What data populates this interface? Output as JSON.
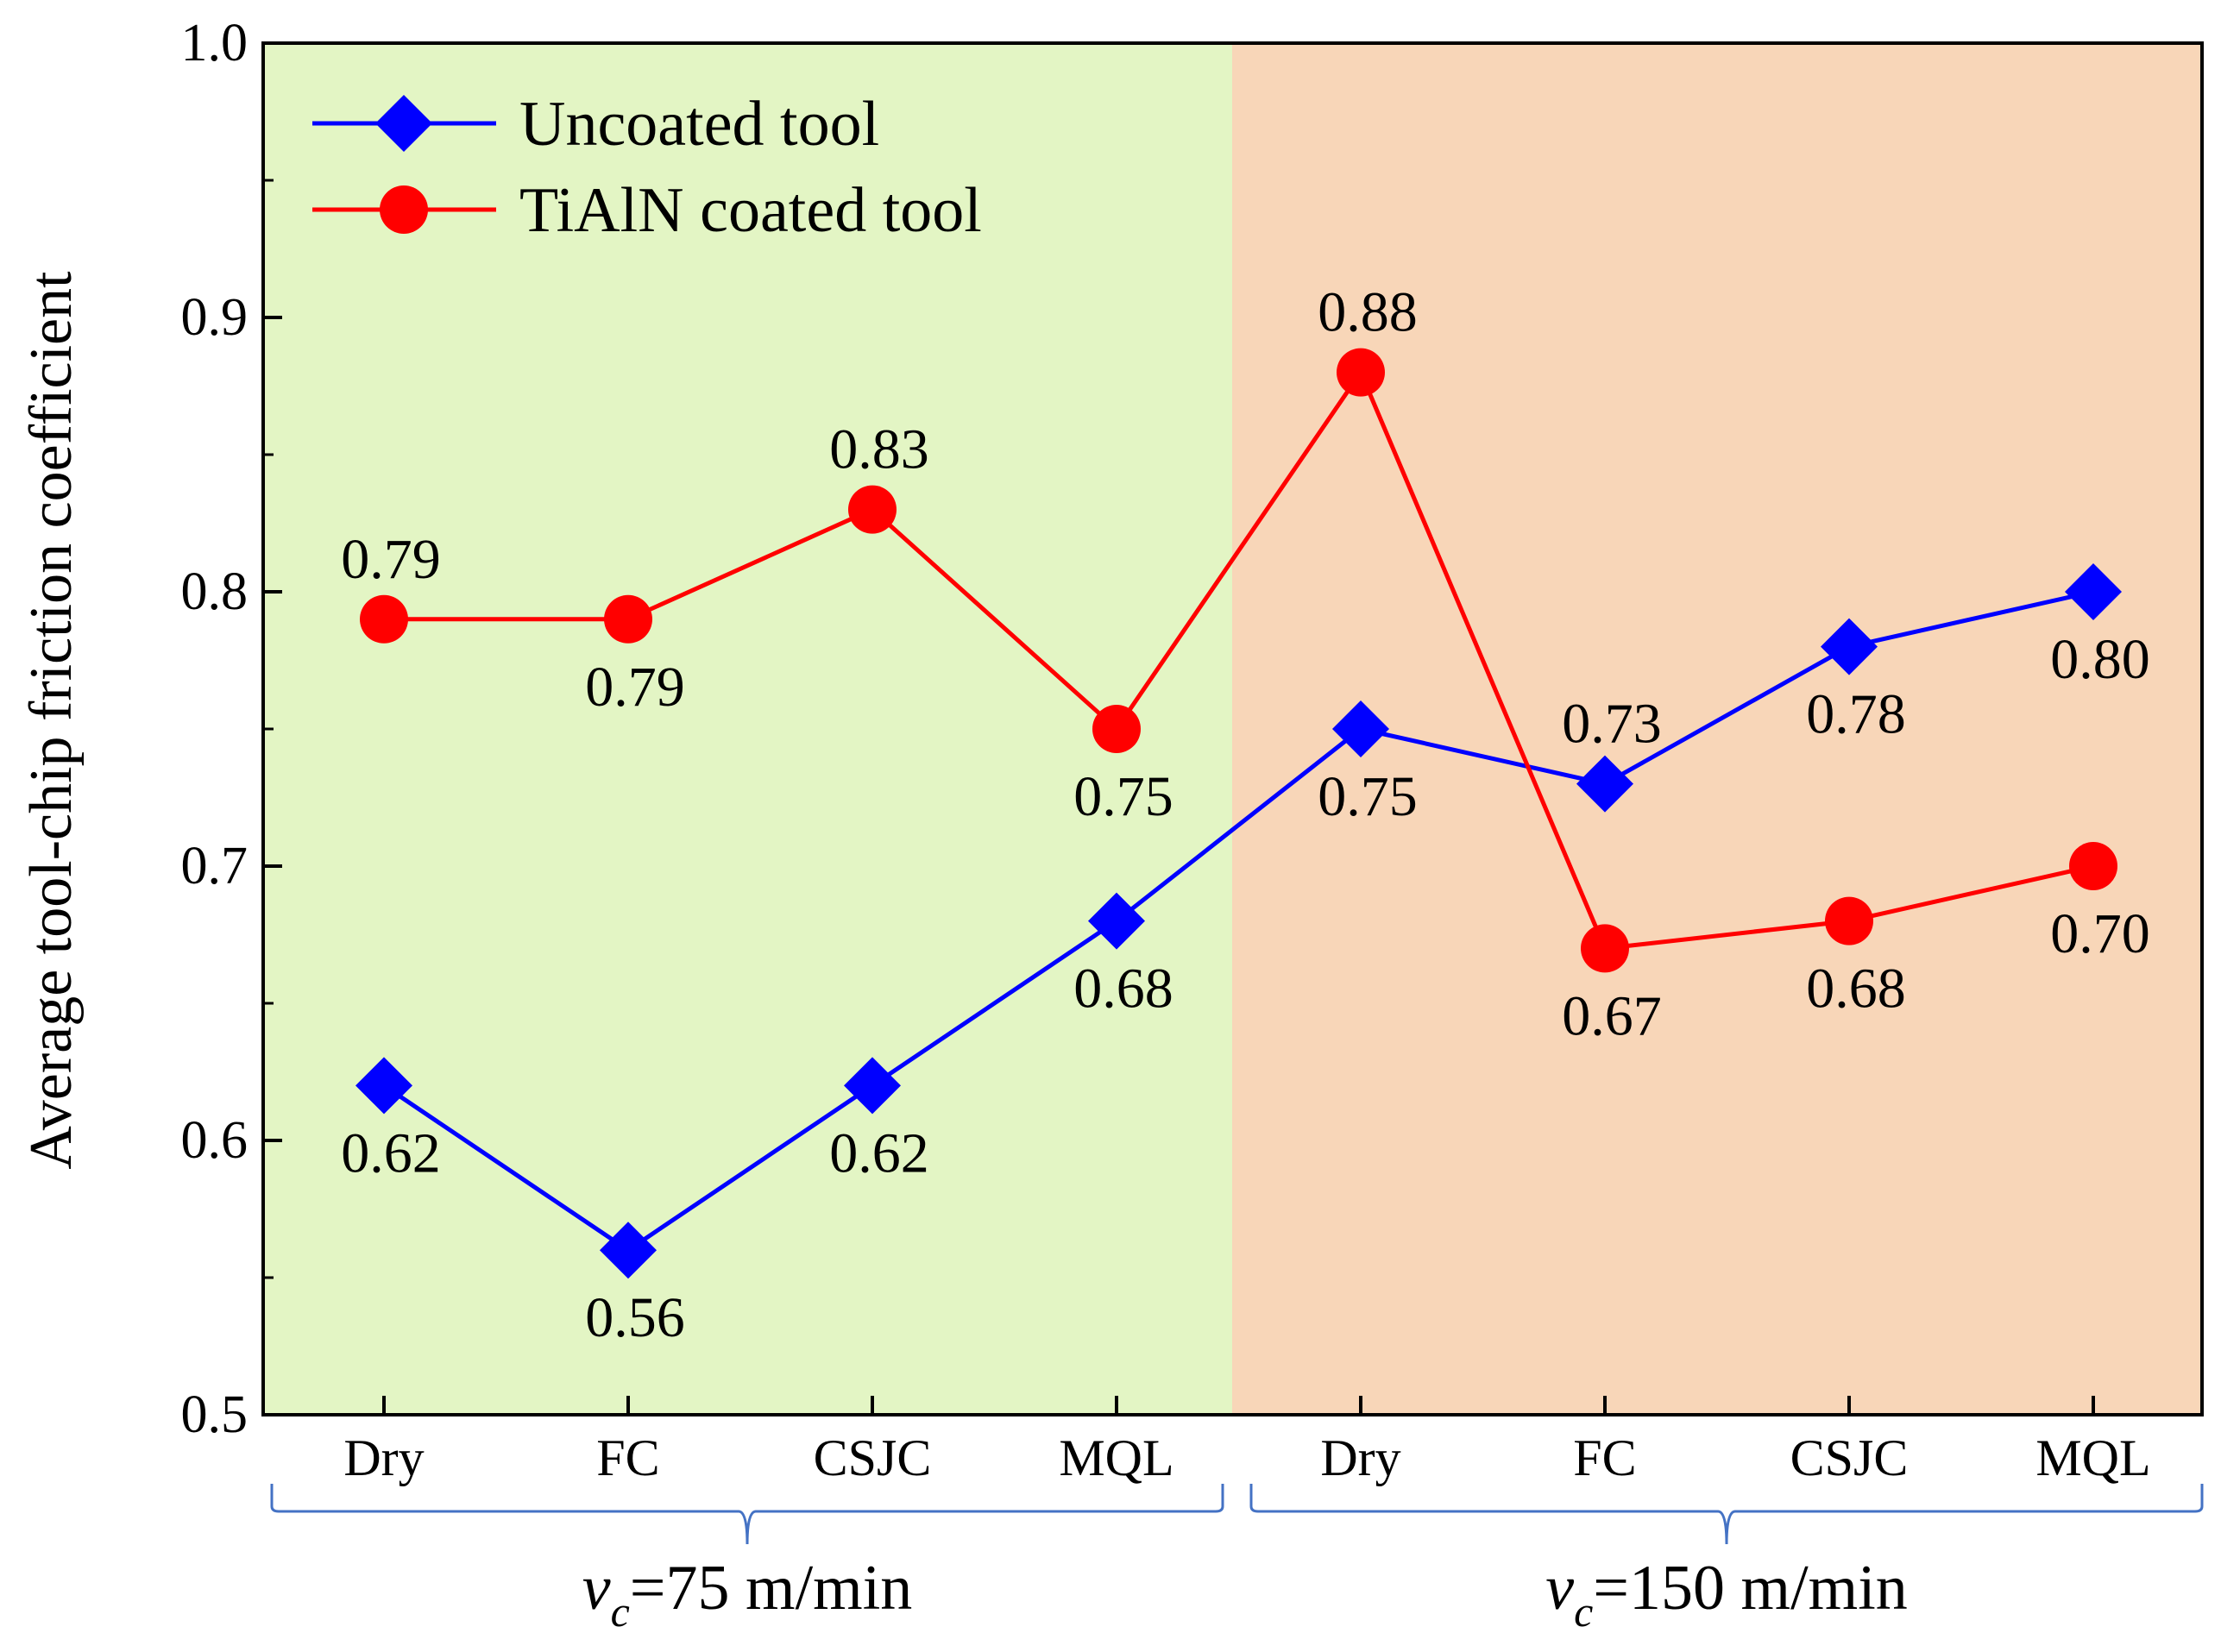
{
  "chart_data": {
    "type": "line",
    "title": "",
    "ylabel": "Average tool-chip friction coefficient",
    "xlabel": "",
    "ylim": [
      0.5,
      1.0
    ],
    "yticks": [
      "0.5",
      "0.6",
      "0.7",
      "0.8",
      "0.9",
      "1.0"
    ],
    "categories": [
      "Dry",
      "FC",
      "CSJC",
      "MQL",
      "Dry",
      "FC",
      "CSJC",
      "MQL"
    ],
    "groups": [
      {
        "label_italic": "v",
        "label_sub": "c",
        "label_rest": "=75 m/min",
        "start": 0,
        "end": 3,
        "background": "#e3f5c4"
      },
      {
        "label_italic": "v",
        "label_sub": "c",
        "label_rest": "=150 m/min",
        "start": 4,
        "end": 7,
        "background": "#f8d6b8"
      }
    ],
    "series": [
      {
        "name": "Uncoated tool",
        "marker": "diamond",
        "color": "#0000ff",
        "values": [
          0.62,
          0.56,
          0.62,
          0.68,
          0.75,
          0.73,
          0.78,
          0.8
        ],
        "labels": [
          "0.62",
          "0.56",
          "0.62",
          "0.68",
          "0.75",
          "0.73",
          "0.78",
          "0.80"
        ],
        "label_pos": [
          "below",
          "below",
          "below",
          "below",
          "below",
          "above",
          "below",
          "below"
        ]
      },
      {
        "name": "TiAlN coated tool",
        "marker": "circle",
        "color": "#ff0000",
        "values": [
          0.79,
          0.79,
          0.83,
          0.75,
          0.88,
          0.67,
          0.68,
          0.7
        ],
        "labels": [
          "0.79",
          "0.79",
          "0.83",
          "0.75",
          "0.88",
          "0.67",
          "0.68",
          "0.70"
        ],
        "label_pos": [
          "above",
          "below",
          "above",
          "below",
          "above",
          "below",
          "below",
          "below"
        ]
      }
    ],
    "legend_position": "top-left",
    "bracket_color": "#4472c4"
  }
}
